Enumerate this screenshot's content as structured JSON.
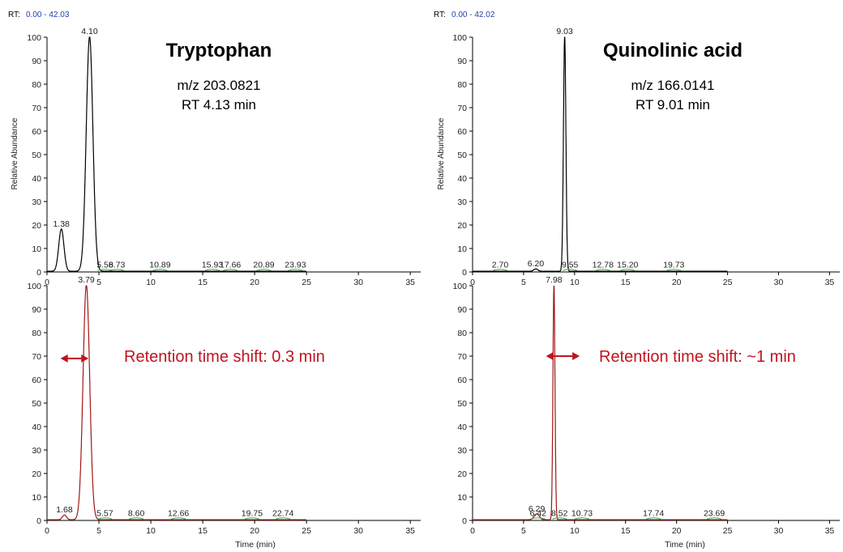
{
  "chart_data": [
    {
      "type": "line",
      "title": "Tryptophan",
      "annotations": [
        "m/z 203.0821",
        "RT 4.13 min"
      ],
      "rt_prefix": "RT:",
      "rt_range_label": "0.00 - 42.03",
      "ylabel": "Relative Abundance",
      "xlabel": "",
      "xlim": [
        0,
        36
      ],
      "ylim": [
        0,
        100
      ],
      "x_ticks": [
        "0",
        "5",
        "10",
        "15",
        "20",
        "25",
        "30",
        "35"
      ],
      "y_ticks": [
        "0",
        "10",
        "20",
        "30",
        "40",
        "50",
        "60",
        "70",
        "80",
        "90",
        "100"
      ],
      "line_color": "#000000",
      "peaks": [
        {
          "rt": 1.38,
          "label": "1.38",
          "height": 18,
          "width": 0.25
        },
        {
          "rt": 4.1,
          "label": "4.10",
          "height": 100,
          "width": 0.32
        }
      ],
      "minor_peaks": [
        {
          "rt": 5.58,
          "label": "5.58"
        },
        {
          "rt": 6.73,
          "label": "6.73"
        },
        {
          "rt": 10.89,
          "label": "10.89"
        },
        {
          "rt": 15.93,
          "label": "15.93"
        },
        {
          "rt": 17.66,
          "label": "17.66"
        },
        {
          "rt": 20.89,
          "label": "20.89"
        },
        {
          "rt": 23.93,
          "label": "23.93"
        }
      ],
      "trace_end": 25
    },
    {
      "type": "line",
      "title": "",
      "ylabel": "",
      "xlabel": "Time (min)",
      "xlim": [
        0,
        36
      ],
      "ylim": [
        0,
        100
      ],
      "x_ticks": [
        "0",
        "5",
        "10",
        "15",
        "20",
        "25",
        "30",
        "35"
      ],
      "y_ticks": [
        "0",
        "10",
        "20",
        "30",
        "40",
        "50",
        "60",
        "70",
        "80",
        "90",
        "100"
      ],
      "line_color": "#a01818",
      "peaks": [
        {
          "rt": 1.68,
          "label": "1.68",
          "height": 2,
          "width": 0.2
        },
        {
          "rt": 3.79,
          "label": "3.79",
          "height": 100,
          "width": 0.32
        }
      ],
      "minor_peaks": [
        {
          "rt": 5.57,
          "label": "5.57"
        },
        {
          "rt": 8.6,
          "label": "8.60"
        },
        {
          "rt": 12.66,
          "label": "12.66"
        },
        {
          "rt": 19.75,
          "label": "19.75"
        },
        {
          "rt": 22.74,
          "label": "22.74"
        }
      ],
      "trace_end": 25,
      "shift_annotation": "Retention time shift: 0.3 min",
      "shift_arrow_range": [
        1.3,
        4.0
      ],
      "shift_arrow_y": 69
    },
    {
      "type": "line",
      "title": "Quinolinic acid",
      "annotations": [
        "m/z 166.0141",
        "RT 9.01 min"
      ],
      "rt_prefix": "RT:",
      "rt_range_label": "0.00 - 42.02",
      "ylabel": "Relative Abundance",
      "xlabel": "",
      "xlim": [
        0,
        36
      ],
      "ylim": [
        0,
        100
      ],
      "x_ticks": [
        "0",
        "5",
        "10",
        "15",
        "20",
        "25",
        "30",
        "35"
      ],
      "y_ticks": [
        "0",
        "10",
        "20",
        "30",
        "40",
        "50",
        "60",
        "70",
        "80",
        "90",
        "100"
      ],
      "line_color": "#000000",
      "peaks": [
        {
          "rt": 6.2,
          "label": "6.20",
          "height": 1,
          "width": 0.2
        },
        {
          "rt": 9.03,
          "label": "9.03",
          "height": 100,
          "width": 0.12
        }
      ],
      "minor_peaks": [
        {
          "rt": 2.7,
          "label": "2.70"
        },
        {
          "rt": 9.55,
          "label": "9.55"
        },
        {
          "rt": 12.78,
          "label": "12.78"
        },
        {
          "rt": 15.2,
          "label": "15.20"
        },
        {
          "rt": 19.73,
          "label": "19.73"
        }
      ],
      "trace_end": 25
    },
    {
      "type": "line",
      "title": "",
      "ylabel": "",
      "xlabel": "Time (min)",
      "xlim": [
        0,
        36
      ],
      "ylim": [
        0,
        100
      ],
      "x_ticks": [
        "0",
        "5",
        "10",
        "15",
        "20",
        "25",
        "30",
        "35"
      ],
      "y_ticks": [
        "0",
        "10",
        "20",
        "30",
        "40",
        "50",
        "60",
        "70",
        "80",
        "90",
        "100"
      ],
      "line_color": "#a01818",
      "peaks": [
        {
          "rt": 6.29,
          "label": "6.29",
          "height": 2.5,
          "width": 0.25
        },
        {
          "rt": 7.98,
          "label": "7.98",
          "height": 100,
          "width": 0.1
        }
      ],
      "minor_peaks": [
        {
          "rt": 6.42,
          "label": "6.42"
        },
        {
          "rt": 8.52,
          "label": "8.52"
        },
        {
          "rt": 10.73,
          "label": "10.73"
        },
        {
          "rt": 17.74,
          "label": "17.74"
        },
        {
          "rt": 23.69,
          "label": "23.69"
        }
      ],
      "trace_end": 25,
      "shift_annotation": "Retention time shift: ~1 min",
      "shift_arrow_range": [
        7.2,
        10.5
      ],
      "shift_arrow_y": 70
    }
  ]
}
